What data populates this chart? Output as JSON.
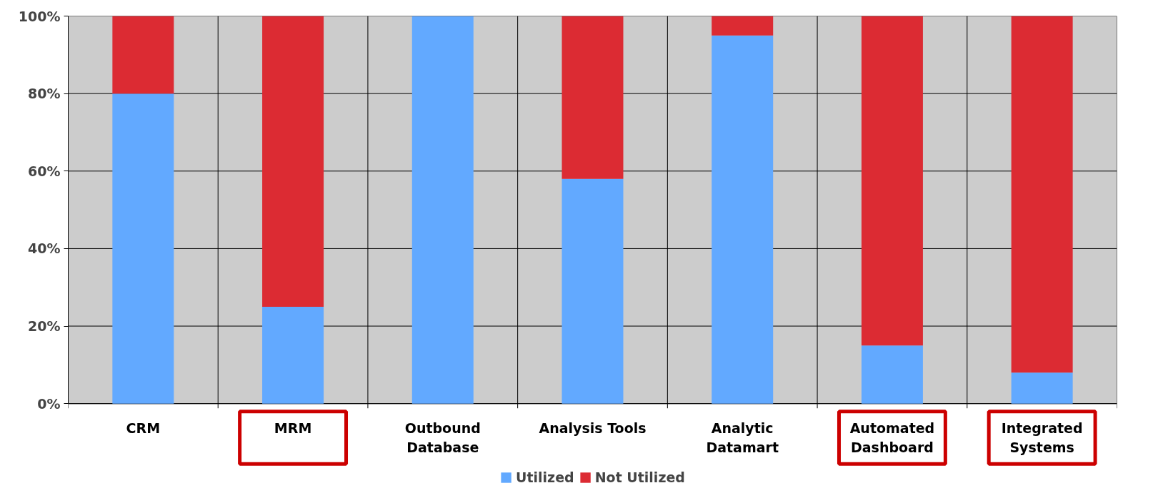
{
  "chart_data": {
    "type": "bar",
    "stacked": true,
    "categories": [
      "CRM",
      "MRM",
      "Outbound\nDatabase",
      "Analysis Tools",
      "Analytic\nDatamart",
      "Automated\nDashboard",
      "Integrated\nSystems"
    ],
    "series": [
      {
        "name": "Utilized",
        "color": "#62a9ff",
        "values": [
          80,
          25,
          100,
          58,
          95,
          15,
          8
        ]
      },
      {
        "name": "Not Utilized",
        "color": "#dc2b33",
        "values": [
          20,
          75,
          0,
          42,
          5,
          85,
          92
        ]
      }
    ],
    "ylim": [
      0,
      100
    ],
    "yticks": [
      {
        "value": 0,
        "label": "0%"
      },
      {
        "value": 20,
        "label": "20%"
      },
      {
        "value": 40,
        "label": "40%"
      },
      {
        "value": 60,
        "label": "60%"
      },
      {
        "value": 80,
        "label": "80%"
      },
      {
        "value": 100,
        "label": "100%"
      }
    ],
    "grid": true,
    "legend": "bottom"
  }
}
